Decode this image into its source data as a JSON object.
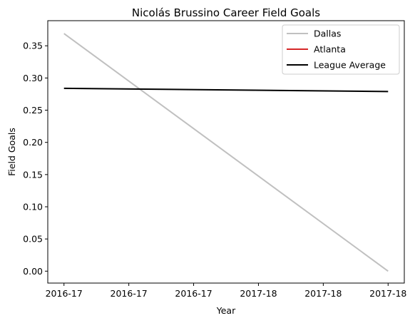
{
  "chart_data": {
    "type": "line",
    "title": "Nicolás Brussino Career Field Goals",
    "xlabel": "Year",
    "ylabel": "Field Goals",
    "x_tick_labels": [
      "2016-17",
      "2016-17",
      "2016-17",
      "2017-18",
      "2017-18",
      "2017-18"
    ],
    "x_range": [
      -0.25,
      5.25
    ],
    "ylim": [
      -0.0185,
      0.389
    ],
    "y_ticks": [
      0.0,
      0.05,
      0.1,
      0.15,
      0.2,
      0.25,
      0.3,
      0.35
    ],
    "y_tick_labels": [
      "0.00",
      "0.05",
      "0.10",
      "0.15",
      "0.20",
      "0.25",
      "0.30",
      "0.35"
    ],
    "grid": false,
    "legend_position": "top-right",
    "series": [
      {
        "name": "Dallas",
        "color": "#c0c0c0",
        "x": [
          0,
          5
        ],
        "y": [
          0.369,
          0.0
        ]
      },
      {
        "name": "Atlanta",
        "color": "#d62728",
        "x": [],
        "y": []
      },
      {
        "name": "League Average",
        "color": "#000000",
        "x": [
          0,
          5
        ],
        "y": [
          0.284,
          0.279
        ]
      }
    ]
  }
}
